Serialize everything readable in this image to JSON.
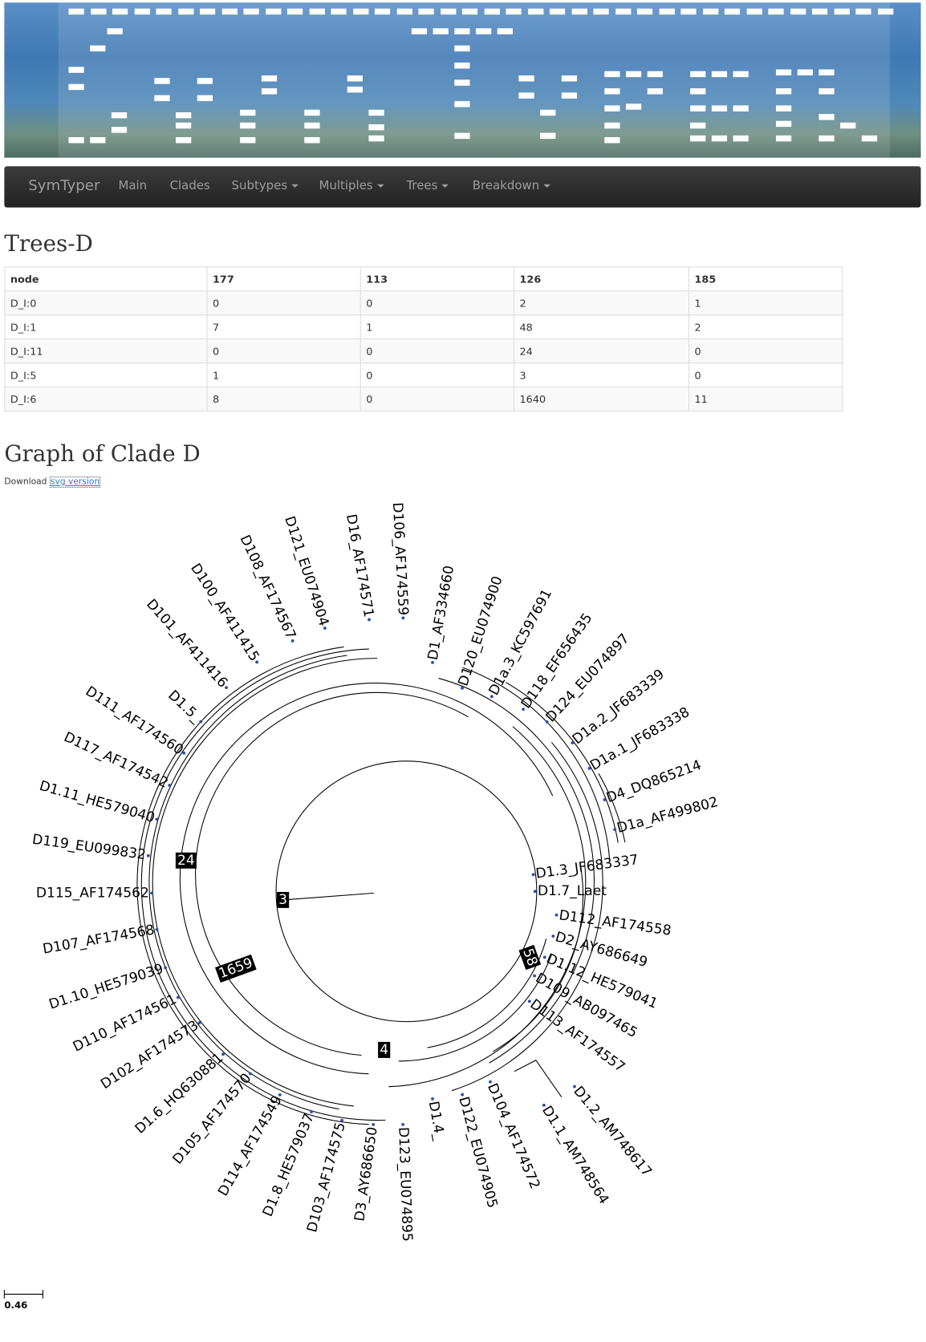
{
  "navbar": {
    "brand": "SymTyper",
    "items": [
      "Main",
      "Clades",
      "Subtypes",
      "Multiples",
      "Trees",
      "Breakdown"
    ]
  },
  "page_title": "Trees-D",
  "table": {
    "header": [
      "node",
      "177",
      "113",
      "126",
      "185"
    ],
    "rows": [
      [
        "D_I:0",
        0,
        0,
        2,
        1
      ],
      [
        "D_I:1",
        7,
        1,
        48,
        2
      ],
      [
        "D_I:11",
        0,
        0,
        24,
        0
      ],
      [
        "D_I:5",
        1,
        0,
        3,
        0
      ],
      [
        "D_I:6",
        8,
        0,
        1640,
        11
      ]
    ]
  },
  "graph": {
    "title": "Graph of Clade D",
    "download": "Download",
    "link": "svg version",
    "leaves": [
      "D106_AF174559",
      "D16_AF174571",
      "D121_EU074904",
      "D108_AF174567",
      "D100_AF411415",
      "D101_AF411416",
      "D1.5_",
      "D111_AF174560",
      "D117_AF174542",
      "D1.11_HE579040",
      "D119_EU099832",
      "D115_AF174562",
      "D107_AF174568",
      "D1.10_HE579039",
      "D110_AF174561",
      "D102_AF174573",
      "D1.6_HQ630881",
      "D105_AF174570",
      "D114_AF174549",
      "D1.8_HE579037",
      "D103_AF174575",
      "D3_AY686650",
      "D123_EU074895",
      "D1.4_",
      "D122_EU074905",
      "D104_AF174572",
      "D1.1_AM748564",
      "D1.2_AM748617",
      "D113_AF174557",
      "D109_AB097465",
      "D1.12_HE579041",
      "D2_AY686649",
      "D112_AF174558",
      "D1.7_Laet",
      "D1.3_JF683337",
      "D1a_AF499802",
      "D4_DQ865214",
      "D1a.1_JF683338",
      "D1a.2_JF683339",
      "D124_EU074897",
      "D118_EF656435",
      "D1a.3_KC597691",
      "D120_EU074900",
      "D1_AF334660"
    ],
    "node_labels": [
      "24",
      "3",
      "1659",
      "58",
      "4"
    ],
    "scale": "0.46"
  }
}
